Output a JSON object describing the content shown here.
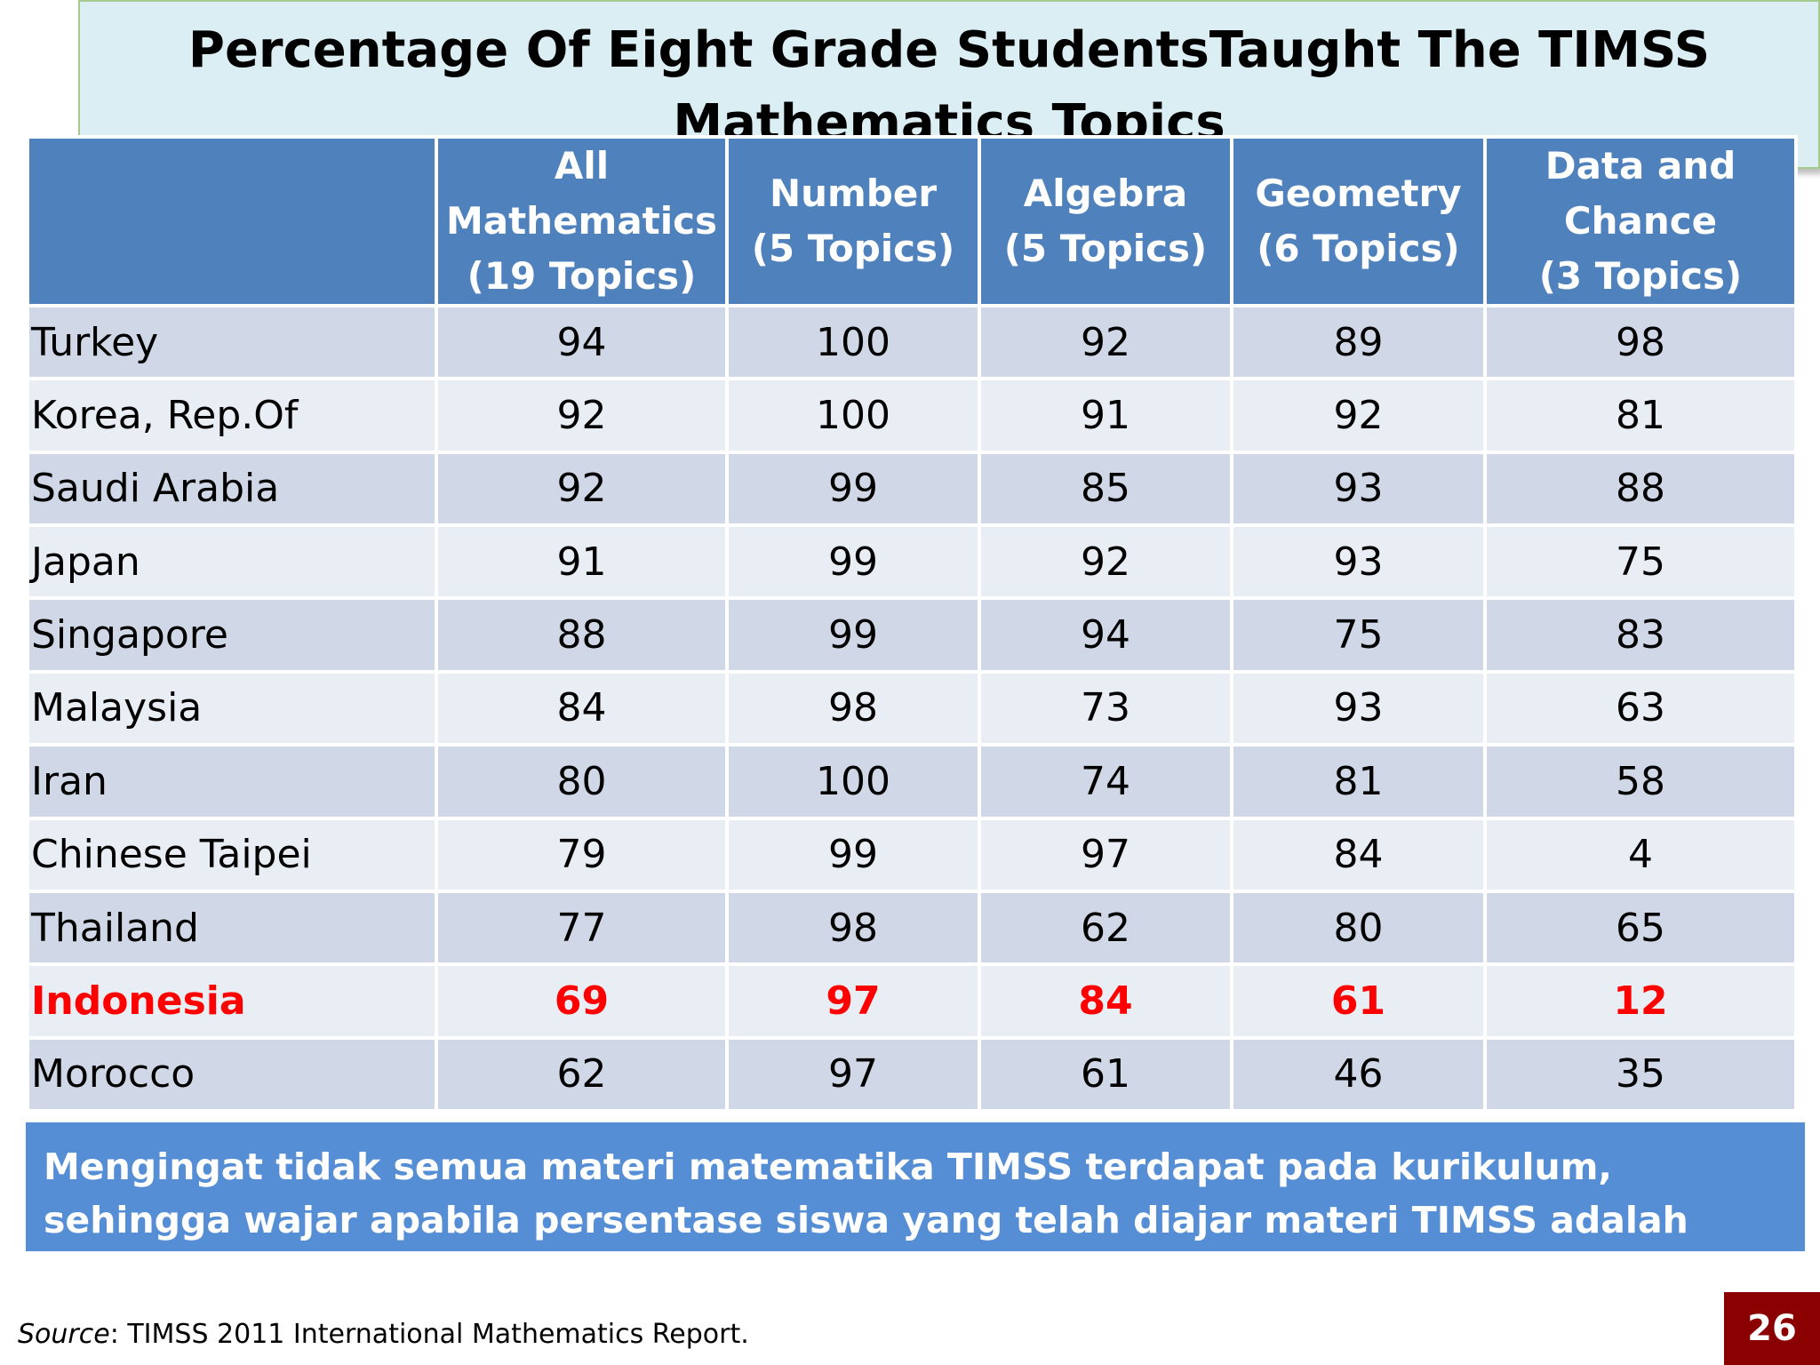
{
  "title": "Percentage Of Eight Grade StudentsTaught The TIMSS Mathematics Topics",
  "table": {
    "headers": [
      "",
      "All\nMathematics\n(19 Topics)",
      "Number\n(5 Topics)",
      "Algebra\n(5 Topics)",
      "Geometry\n(6 Topics)",
      "Data and\nChance\n(3 Topics)"
    ],
    "rows": [
      [
        "Turkey",
        "94",
        "100",
        "92",
        "89",
        "98"
      ],
      [
        "Korea, Rep.Of",
        "92",
        "100",
        "91",
        "92",
        "81"
      ],
      [
        "Saudi Arabia",
        "92",
        "99",
        "85",
        "93",
        "88"
      ],
      [
        "Japan",
        "91",
        "99",
        "92",
        "93",
        "75"
      ],
      [
        "Singapore",
        "88",
        "99",
        "94",
        "75",
        "83"
      ],
      [
        "Malaysia",
        "84",
        "98",
        "73",
        "93",
        "63"
      ],
      [
        "Iran",
        "80",
        "100",
        "74",
        "81",
        "58"
      ],
      [
        "Chinese Taipei",
        "79",
        "99",
        "97",
        "84",
        "4"
      ],
      [
        "Thailand",
        "77",
        "98",
        "62",
        "80",
        "65"
      ],
      [
        "Indonesia",
        "69",
        "97",
        "84",
        "61",
        "12"
      ],
      [
        "Morocco",
        "62",
        "97",
        "61",
        "46",
        "35"
      ]
    ],
    "highlight_row": "Indonesia",
    "colors": {
      "header_bg": "#4f81bd",
      "row_odd_bg": "#d0d8e8",
      "row_even_bg": "#e9edf4",
      "highlight_text": "#ff0000"
    }
  },
  "note": "Mengingat tidak semua materi matematika TIMSS terdapat pada kurikulum, sehingga wajar apabila persentase siswa yang telah diajar materi TIMSS adalah rendah",
  "source": {
    "prefix": "Source",
    "text": ": TIMSS 2011 International Mathematics Report."
  },
  "slide_number": "26"
}
